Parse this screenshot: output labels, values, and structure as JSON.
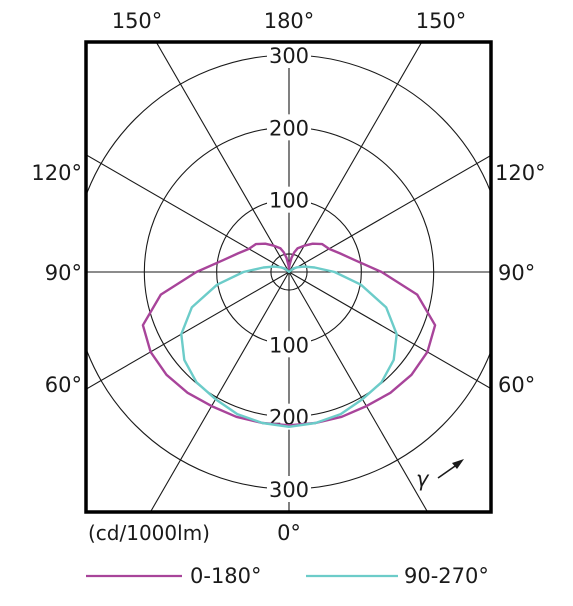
{
  "chart_data": {
    "type": "polar",
    "unit_label": "(cd/1000lm)",
    "radial_ticks": [
      100,
      200,
      300
    ],
    "radial_tick_labels": [
      "100",
      "200",
      "300"
    ],
    "rmax": 300,
    "angle_labels": {
      "top": [
        "150°",
        "180°",
        "150°"
      ],
      "left": [
        "120°",
        "90°",
        "60°"
      ],
      "right": [
        "120°",
        "90°",
        "60°"
      ],
      "bottom": "0°"
    },
    "gamma_label": "γ",
    "spoke_angles_deg": [
      0,
      30,
      60,
      90,
      120,
      150,
      180,
      210,
      240,
      270,
      300,
      330
    ],
    "series": [
      {
        "name": "0-180°",
        "color": "#a8449a",
        "angles_deg": [
          0,
          10,
          20,
          30,
          40,
          50,
          60,
          70,
          80,
          90,
          100,
          110,
          120,
          130,
          140,
          150,
          160,
          165,
          170,
          175,
          180
        ],
        "values": [
          212,
          212,
          213,
          214,
          218,
          221,
          221,
          215,
          180,
          128,
          93,
          75,
          64,
          60,
          51,
          42,
          35,
          28,
          20,
          10,
          5
        ]
      },
      {
        "name": "90-270°",
        "color": "#6cccc9",
        "angles_deg": [
          0,
          10,
          20,
          30,
          40,
          50,
          60,
          70,
          80,
          90,
          100,
          110,
          120,
          130,
          140,
          150,
          160,
          170,
          180
        ],
        "values": [
          214,
          212,
          209,
          203,
          199,
          189,
          172,
          143,
          101,
          63,
          36,
          22,
          13,
          7,
          0,
          0,
          0,
          0,
          0
        ]
      }
    ]
  }
}
